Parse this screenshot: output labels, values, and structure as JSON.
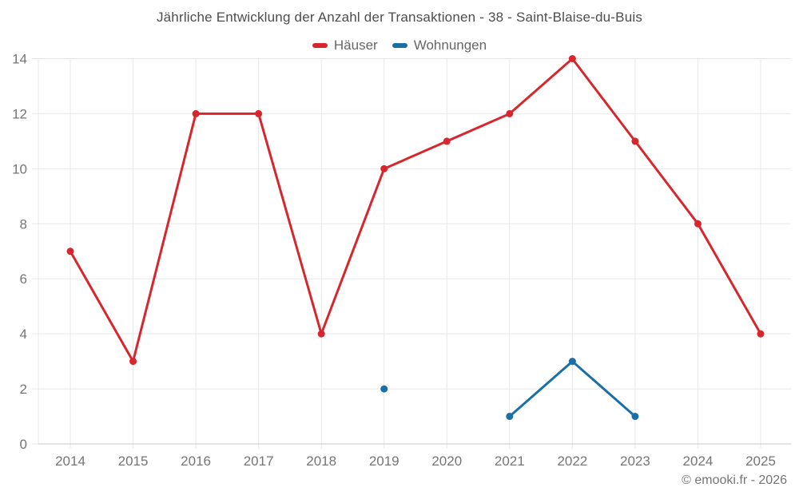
{
  "footer": {
    "attribution": "© emooki.fr - 2026"
  },
  "colors": {
    "grid": "#e8e8e8",
    "axis_baseline": "#c9c9c9",
    "tick_text": "#757575",
    "title_text": "#4d4d4d",
    "legend_text": "#666666",
    "background": "#ffffff",
    "series_red": "#d8262d",
    "series_blue": "#1a6fa8"
  },
  "chart_data": {
    "type": "line",
    "title": "Jährliche Entwicklung der Anzahl der Transaktionen - 38 - Saint-Blaise-du-Buis",
    "x": [
      2014,
      2015,
      2016,
      2017,
      2018,
      2019,
      2020,
      2021,
      2022,
      2023,
      2024,
      2025
    ],
    "series": [
      {
        "name": "Häuser",
        "color": "#d8262d",
        "values": [
          7,
          3,
          12,
          12,
          4,
          10,
          11,
          12,
          14,
          11,
          8,
          4
        ]
      },
      {
        "name": "Wohnungen",
        "color": "#1a6fa8",
        "values": [
          null,
          null,
          null,
          null,
          null,
          2,
          null,
          1,
          3,
          1,
          null,
          null
        ]
      }
    ],
    "xlabel": "",
    "ylabel": "",
    "ylim": [
      0,
      14
    ],
    "ytick_step": 2,
    "yticks": [
      0,
      2,
      4,
      6,
      8,
      10,
      12,
      14
    ],
    "grid": true,
    "legend_position": "top",
    "marker": "circle"
  }
}
